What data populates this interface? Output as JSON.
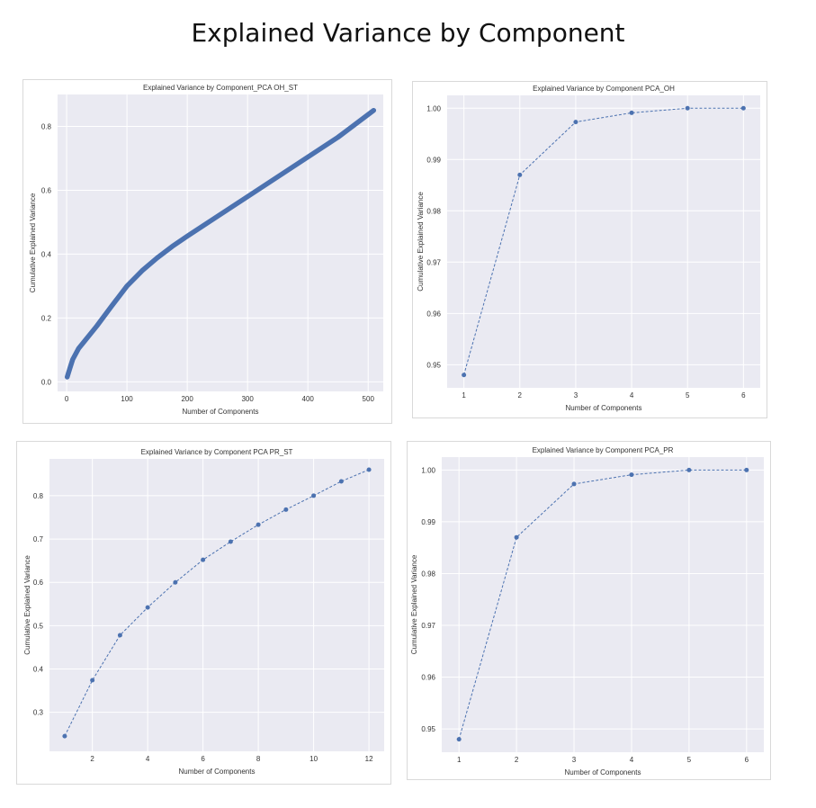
{
  "page": {
    "title": "Explained Variance by Component"
  },
  "colors": {
    "series": "#4c72b0",
    "plot_background": "#eaeaf2",
    "grid": "#ffffff"
  },
  "chart_data": [
    {
      "type": "line",
      "title": "Explained Variance by Component_PCA OH_ST",
      "xlabel": "Number of Components",
      "ylabel": "Cumulative Explained Variance",
      "xlim": [
        -15,
        525
      ],
      "ylim": [
        -0.03,
        0.9
      ],
      "xticks": [
        0,
        100,
        200,
        300,
        400,
        500
      ],
      "yticks": [
        0.0,
        0.2,
        0.4,
        0.6,
        0.8
      ],
      "xtick_labels": [
        "0",
        "100",
        "200",
        "300",
        "400",
        "500"
      ],
      "ytick_labels": [
        "0.0",
        "0.2",
        "0.4",
        "0.6",
        "0.8"
      ],
      "grid": true,
      "style": "thick-dots",
      "series": [
        {
          "x": [
            1,
            5,
            10,
            20,
            30,
            50,
            75,
            100,
            125,
            150,
            175,
            200,
            250,
            300,
            350,
            400,
            450,
            509
          ],
          "y": [
            0.015,
            0.04,
            0.07,
            0.105,
            0.128,
            0.175,
            0.238,
            0.3,
            0.348,
            0.388,
            0.424,
            0.456,
            0.518,
            0.58,
            0.642,
            0.704,
            0.766,
            0.85
          ]
        }
      ]
    },
    {
      "type": "line",
      "title": "Explained Variance by Component PCA_OH",
      "xlabel": "Number of Components",
      "ylabel": "Cumulative Explained Variance",
      "xlim": [
        0.7,
        6.3
      ],
      "ylim": [
        0.9455,
        1.0025
      ],
      "xticks": [
        1,
        2,
        3,
        4,
        5,
        6
      ],
      "yticks": [
        0.95,
        0.96,
        0.97,
        0.98,
        0.99,
        1.0
      ],
      "xtick_labels": [
        "1",
        "2",
        "3",
        "4",
        "5",
        "6"
      ],
      "ytick_labels": [
        "0.95",
        "0.96",
        "0.97",
        "0.98",
        "0.99",
        "1.00"
      ],
      "grid": true,
      "style": "dashed-markers",
      "series": [
        {
          "x": [
            1,
            2,
            3,
            4,
            5,
            6
          ],
          "y": [
            0.948,
            0.987,
            0.9973,
            0.9991,
            1.0,
            1.0
          ]
        }
      ]
    },
    {
      "type": "line",
      "title": "Explained Variance by Component PCA PR_ST",
      "xlabel": "Number of Components",
      "ylabel": "Cumulative Explained Variance",
      "xlim": [
        0.45,
        12.55
      ],
      "ylim": [
        0.21,
        0.885
      ],
      "xticks": [
        2,
        4,
        6,
        8,
        10,
        12
      ],
      "yticks": [
        0.3,
        0.4,
        0.5,
        0.6,
        0.7,
        0.8
      ],
      "xtick_labels": [
        "2",
        "4",
        "6",
        "8",
        "10",
        "12"
      ],
      "ytick_labels": [
        "0.3",
        "0.4",
        "0.5",
        "0.6",
        "0.7",
        "0.8"
      ],
      "grid": true,
      "style": "dashed-markers",
      "series": [
        {
          "x": [
            1,
            2,
            3,
            4,
            5,
            6,
            7,
            8,
            9,
            10,
            11,
            12
          ],
          "y": [
            0.245,
            0.374,
            0.478,
            0.542,
            0.6,
            0.652,
            0.694,
            0.733,
            0.768,
            0.8,
            0.833,
            0.86
          ]
        }
      ]
    },
    {
      "type": "line",
      "title": "Explained Variance by Component PCA_PR",
      "xlabel": "Number of Components",
      "ylabel": "Cumulative Explained Variance",
      "xlim": [
        0.7,
        6.3
      ],
      "ylim": [
        0.9455,
        1.0025
      ],
      "xticks": [
        1,
        2,
        3,
        4,
        5,
        6
      ],
      "yticks": [
        0.95,
        0.96,
        0.97,
        0.98,
        0.99,
        1.0
      ],
      "xtick_labels": [
        "1",
        "2",
        "3",
        "4",
        "5",
        "6"
      ],
      "ytick_labels": [
        "0.95",
        "0.96",
        "0.97",
        "0.98",
        "0.99",
        "1.00"
      ],
      "grid": true,
      "style": "dashed-markers",
      "series": [
        {
          "x": [
            1,
            2,
            3,
            4,
            5,
            6
          ],
          "y": [
            0.948,
            0.987,
            0.9973,
            0.9991,
            1.0,
            1.0
          ]
        }
      ]
    }
  ]
}
